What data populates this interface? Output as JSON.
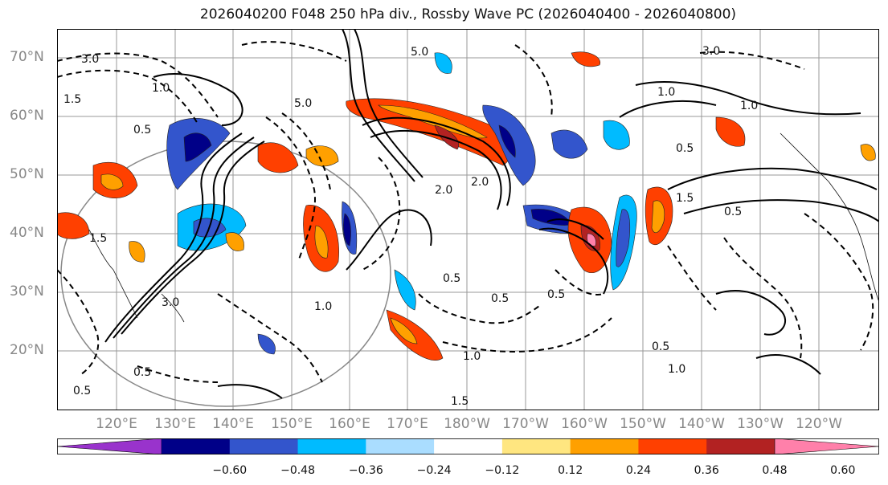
{
  "title": "2026040200 F048 250 hPa div., Rossby Wave PC (2026040400 - 2026040800)",
  "lat_labels": [
    "70°N",
    "60°N",
    "50°N",
    "40°N",
    "30°N",
    "20°N"
  ],
  "lon_labels": [
    "120°E",
    "130°E",
    "140°E",
    "150°E",
    "160°E",
    "170°E",
    "180°W",
    "170°W",
    "160°W",
    "150°W",
    "140°W",
    "130°W",
    "120°W"
  ],
  "colorbar": {
    "colors": [
      "#9933cc",
      "#000088",
      "#3355cc",
      "#00bbff",
      "#aaddff",
      "#ffffff",
      "#ffe680",
      "#ffa000",
      "#ff4000",
      "#b22222",
      "#ff80aa"
    ],
    "tick_labels": [
      "−0.60",
      "−0.48",
      "−0.36",
      "−0.24",
      "−0.12",
      "0.12",
      "0.24",
      "0.36",
      "0.48",
      "0.60"
    ]
  },
  "contour_labels": [
    "3.0",
    "5.0",
    "1.0",
    "1.5",
    "0.5",
    "2.0",
    "3.0",
    "1.0",
    "5.0",
    "1.5",
    "0.5",
    "1.0",
    "0.5",
    "1.5",
    "2.0",
    "0.5",
    "1.0",
    "0.5",
    "3.0",
    "1.0",
    "0.5",
    "0.5",
    "1.0",
    "1.5",
    "0.5",
    "0.5"
  ]
}
